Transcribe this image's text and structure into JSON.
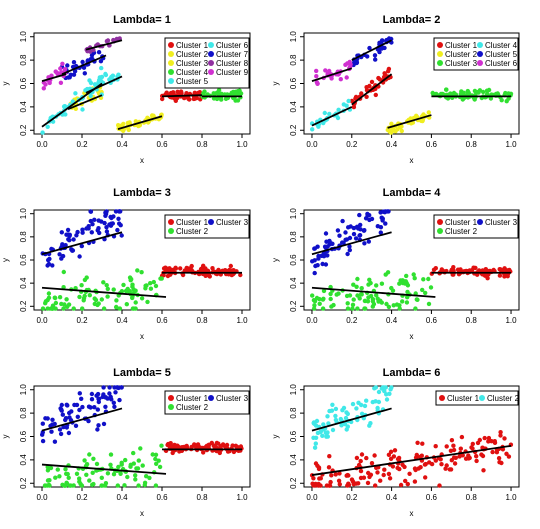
{
  "colors": {
    "red": "#e01010",
    "yellow": "#f0ee20",
    "green": "#30e030",
    "cyan": "#40e8e8",
    "blue": "#1010c8",
    "purple": "#9030a0",
    "magenta": "#d030d0",
    "fit": "#000000"
  },
  "chart_data": [
    {
      "type": "scatter",
      "title": "Lambda= 1",
      "xlabel": "x",
      "ylabel": "y",
      "xlim": [
        0,
        1
      ],
      "ylim": [
        0.2,
        1.0
      ],
      "xticks": [
        "0.0",
        "0.2",
        "0.4",
        "0.6",
        "0.8",
        "1.0"
      ],
      "yticks": [
        "0.2",
        "0.4",
        "0.6",
        "0.8",
        "1.0"
      ],
      "legend_position": "top-right",
      "legend_columns": 2,
      "series": [
        {
          "name": "Cluster 1",
          "color": "red",
          "x_range": [
            0.6,
            0.8
          ],
          "y_start": 0.5,
          "y_end": 0.5,
          "noise": 0.02,
          "count": 55,
          "fit": [
            [
              0.6,
              0.49
            ],
            [
              0.8,
              0.5
            ]
          ]
        },
        {
          "name": "Cluster 2",
          "color": "yellow",
          "x_range": [
            0.1,
            0.3
          ],
          "y_start": 0.35,
          "y_end": 0.55,
          "noise": 0.03,
          "count": 30,
          "fit": [
            [
              0.13,
              0.38
            ],
            [
              0.3,
              0.5
            ]
          ]
        },
        {
          "name": "Cluster 3",
          "color": "yellow",
          "x_range": [
            0.38,
            0.6
          ],
          "y_start": 0.2,
          "y_end": 0.33,
          "noise": 0.02,
          "count": 45,
          "fit": [
            [
              0.38,
              0.21
            ],
            [
              0.6,
              0.32
            ]
          ]
        },
        {
          "name": "Cluster 4",
          "color": "green",
          "x_range": [
            0.8,
            1.0
          ],
          "y_start": 0.5,
          "y_end": 0.5,
          "noise": 0.02,
          "count": 50,
          "fit": [
            [
              0.8,
              0.49
            ],
            [
              1.0,
              0.49
            ]
          ]
        },
        {
          "name": "Cluster 5",
          "color": "cyan",
          "x_range": [
            0.0,
            0.32
          ],
          "y_start": 0.22,
          "y_end": 0.68,
          "noise": 0.03,
          "count": 40,
          "fit": [
            [
              0.0,
              0.23
            ],
            [
              0.3,
              0.6
            ]
          ]
        },
        {
          "name": "Cluster 6",
          "color": "cyan",
          "x_range": [
            0.2,
            0.4
          ],
          "y_start": 0.48,
          "y_end": 0.68,
          "noise": 0.03,
          "count": 20,
          "fit": [
            [
              0.22,
              0.52
            ],
            [
              0.4,
              0.66
            ]
          ]
        },
        {
          "name": "Cluster 7",
          "color": "blue",
          "x_range": [
            0.1,
            0.32
          ],
          "y_start": 0.66,
          "y_end": 0.86,
          "noise": 0.03,
          "count": 35,
          "fit": [
            [
              0.1,
              0.68
            ],
            [
              0.32,
              0.84
            ]
          ]
        },
        {
          "name": "Cluster 8",
          "color": "purple",
          "x_range": [
            0.22,
            0.4
          ],
          "y_start": 0.88,
          "y_end": 0.98,
          "noise": 0.02,
          "count": 18,
          "fit": [
            [
              0.22,
              0.89
            ],
            [
              0.4,
              0.97
            ]
          ]
        },
        {
          "name": "Cluster 9",
          "color": "magenta",
          "x_range": [
            0.0,
            0.12
          ],
          "y_start": 0.6,
          "y_end": 0.7,
          "noise": 0.03,
          "count": 20,
          "fit": [
            [
              0.0,
              0.62
            ],
            [
              0.12,
              0.68
            ]
          ]
        }
      ]
    },
    {
      "type": "scatter",
      "title": "Lambda= 2",
      "xlabel": "x",
      "ylabel": "y",
      "xlim": [
        0,
        1
      ],
      "ylim": [
        0.2,
        1.0
      ],
      "xticks": [
        "0.0",
        "0.2",
        "0.4",
        "0.6",
        "0.8",
        "1.0"
      ],
      "yticks": [
        "0.2",
        "0.4",
        "0.6",
        "0.8",
        "1.0"
      ],
      "legend_position": "top-right",
      "legend_columns": 2,
      "series": [
        {
          "name": "Cluster 1",
          "color": "red",
          "x_range": [
            0.2,
            0.4
          ],
          "y_start": 0.42,
          "y_end": 0.7,
          "noise": 0.03,
          "count": 40,
          "fit": [
            [
              0.2,
              0.42
            ],
            [
              0.4,
              0.68
            ]
          ]
        },
        {
          "name": "Cluster 2",
          "color": "yellow",
          "x_range": [
            0.38,
            0.6
          ],
          "y_start": 0.2,
          "y_end": 0.33,
          "noise": 0.02,
          "count": 45,
          "fit": [
            [
              0.38,
              0.22
            ],
            [
              0.6,
              0.33
            ]
          ]
        },
        {
          "name": "Cluster 3",
          "color": "green",
          "x_range": [
            0.6,
            1.0
          ],
          "y_start": 0.5,
          "y_end": 0.5,
          "noise": 0.02,
          "count": 90,
          "fit": [
            [
              0.6,
              0.49
            ],
            [
              1.0,
              0.49
            ]
          ]
        },
        {
          "name": "Cluster 4",
          "color": "cyan",
          "x_range": [
            0.0,
            0.2
          ],
          "y_start": 0.22,
          "y_end": 0.42,
          "noise": 0.03,
          "count": 25,
          "fit": [
            [
              0.0,
              0.24
            ],
            [
              0.2,
              0.4
            ]
          ]
        },
        {
          "name": "Cluster 5",
          "color": "blue",
          "x_range": [
            0.2,
            0.4
          ],
          "y_start": 0.76,
          "y_end": 0.98,
          "noise": 0.03,
          "count": 35,
          "fit": [
            [
              0.2,
              0.8
            ],
            [
              0.4,
              0.97
            ]
          ]
        },
        {
          "name": "Cluster 6",
          "color": "magenta",
          "x_range": [
            0.0,
            0.2
          ],
          "y_start": 0.6,
          "y_end": 0.75,
          "noise": 0.03,
          "count": 30,
          "fit": [
            [
              0.0,
              0.62
            ],
            [
              0.2,
              0.73
            ]
          ]
        }
      ]
    },
    {
      "type": "scatter",
      "title": "Lambda= 3",
      "xlabel": "x",
      "ylabel": "y",
      "xlim": [
        0,
        1
      ],
      "ylim": [
        0.2,
        1.0
      ],
      "xticks": [
        "0.0",
        "0.2",
        "0.4",
        "0.6",
        "0.8",
        "1.0"
      ],
      "yticks": [
        "0.2",
        "0.4",
        "0.6",
        "0.8",
        "1.0"
      ],
      "legend_position": "top-right",
      "legend_columns": 2,
      "series": [
        {
          "name": "Cluster 1",
          "color": "red",
          "x_range": [
            0.6,
            1.0
          ],
          "y_start": 0.5,
          "y_end": 0.5,
          "noise": 0.02,
          "count": 90,
          "fit": [
            [
              0.6,
              0.49
            ],
            [
              1.0,
              0.49
            ]
          ]
        },
        {
          "name": "Cluster 2",
          "color": "green",
          "x_range": [
            0.0,
            0.6
          ],
          "y_start": 0.22,
          "y_end": 0.35,
          "noise": 0.08,
          "count": 100,
          "fit": [
            [
              0.0,
              0.36
            ],
            [
              0.62,
              0.28
            ]
          ]
        },
        {
          "name": "Cluster 3",
          "color": "blue",
          "x_range": [
            0.0,
            0.4
          ],
          "y_start": 0.62,
          "y_end": 0.98,
          "noise": 0.08,
          "count": 80,
          "fit": [
            [
              0.0,
              0.65
            ],
            [
              0.4,
              0.84
            ]
          ]
        }
      ]
    },
    {
      "type": "scatter",
      "title": "Lambda= 4",
      "xlabel": "x",
      "ylabel": "y",
      "xlim": [
        0,
        1
      ],
      "ylim": [
        0.2,
        1.0
      ],
      "xticks": [
        "0.0",
        "0.2",
        "0.4",
        "0.6",
        "0.8",
        "1.0"
      ],
      "yticks": [
        "0.2",
        "0.4",
        "0.6",
        "0.8",
        "1.0"
      ],
      "legend_position": "top-right",
      "legend_columns": 2,
      "series": [
        {
          "name": "Cluster 1",
          "color": "red",
          "x_range": [
            0.6,
            1.0
          ],
          "y_start": 0.5,
          "y_end": 0.5,
          "noise": 0.02,
          "count": 90,
          "fit": [
            [
              0.6,
              0.49
            ],
            [
              1.0,
              0.49
            ]
          ]
        },
        {
          "name": "Cluster 2",
          "color": "green",
          "x_range": [
            0.0,
            0.6
          ],
          "y_start": 0.22,
          "y_end": 0.35,
          "noise": 0.08,
          "count": 100,
          "fit": [
            [
              0.0,
              0.36
            ],
            [
              0.62,
              0.28
            ]
          ]
        },
        {
          "name": "Cluster 3",
          "color": "blue",
          "x_range": [
            0.0,
            0.4
          ],
          "y_start": 0.62,
          "y_end": 0.98,
          "noise": 0.08,
          "count": 80,
          "fit": [
            [
              0.0,
              0.65
            ],
            [
              0.4,
              0.84
            ]
          ]
        }
      ]
    },
    {
      "type": "scatter",
      "title": "Lambda= 5",
      "xlabel": "x",
      "ylabel": "y",
      "xlim": [
        0,
        1
      ],
      "ylim": [
        0.2,
        1.0
      ],
      "xticks": [
        "0.0",
        "0.2",
        "0.4",
        "0.6",
        "0.8",
        "1.0"
      ],
      "yticks": [
        "0.2",
        "0.4",
        "0.6",
        "0.8",
        "1.0"
      ],
      "legend_position": "top-right",
      "legend_columns": 2,
      "series": [
        {
          "name": "Cluster 1",
          "color": "red",
          "x_range": [
            0.6,
            1.0
          ],
          "y_start": 0.5,
          "y_end": 0.5,
          "noise": 0.02,
          "count": 90,
          "fit": [
            [
              0.6,
              0.49
            ],
            [
              1.0,
              0.49
            ]
          ]
        },
        {
          "name": "Cluster 2",
          "color": "green",
          "x_range": [
            0.0,
            0.6
          ],
          "y_start": 0.22,
          "y_end": 0.35,
          "noise": 0.08,
          "count": 100,
          "fit": [
            [
              0.0,
              0.36
            ],
            [
              0.62,
              0.28
            ]
          ]
        },
        {
          "name": "Cluster 3",
          "color": "blue",
          "x_range": [
            0.0,
            0.4
          ],
          "y_start": 0.62,
          "y_end": 0.98,
          "noise": 0.08,
          "count": 80,
          "fit": [
            [
              0.0,
              0.65
            ],
            [
              0.4,
              0.84
            ]
          ]
        }
      ]
    },
    {
      "type": "scatter",
      "title": "Lambda= 6",
      "xlabel": "x",
      "ylabel": "y",
      "xlim": [
        0,
        1
      ],
      "ylim": [
        0.2,
        1.0
      ],
      "xticks": [
        "0.0",
        "0.2",
        "0.4",
        "0.6",
        "0.8",
        "1.0"
      ],
      "yticks": [
        "0.2",
        "0.4",
        "0.6",
        "0.8",
        "1.0"
      ],
      "legend_position": "top-right",
      "legend_columns": 2,
      "series": [
        {
          "name": "Cluster 1",
          "color": "red",
          "x_range": [
            0.0,
            1.0
          ],
          "y_start": 0.22,
          "y_end": 0.52,
          "noise": 0.08,
          "count": 170,
          "fit": [
            [
              0.0,
              0.27
            ],
            [
              1.0,
              0.52
            ]
          ]
        },
        {
          "name": "Cluster 2",
          "color": "cyan",
          "x_range": [
            0.0,
            0.4
          ],
          "y_start": 0.62,
          "y_end": 0.98,
          "noise": 0.08,
          "count": 80,
          "fit": [
            [
              0.0,
              0.65
            ],
            [
              0.4,
              0.84
            ]
          ]
        }
      ]
    }
  ]
}
